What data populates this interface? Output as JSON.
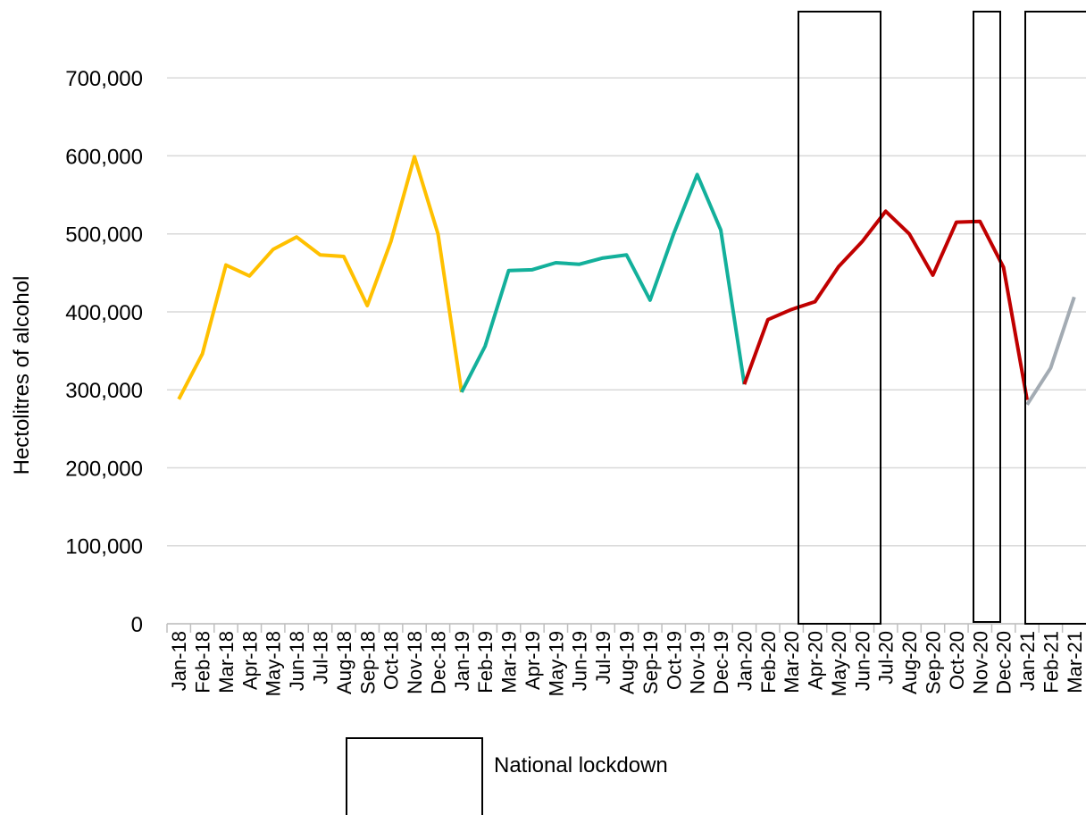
{
  "chart_data": {
    "type": "line",
    "y_label": "Hectolitres of alcohol",
    "legend_label": "National lockdown",
    "categories": [
      "Jan-18",
      "Feb-18",
      "Mar-18",
      "Apr-18",
      "May-18",
      "Jun-18",
      "Jul-18",
      "Aug-18",
      "Sep-18",
      "Oct-18",
      "Nov-18",
      "Dec-18",
      "Jan-19",
      "Feb-19",
      "Mar-19",
      "Apr-19",
      "May-19",
      "Jun-19",
      "Jul-19",
      "Aug-19",
      "Sep-19",
      "Oct-19",
      "Nov-19",
      "Dec-19",
      "Jan-20",
      "Feb-20",
      "Mar-20",
      "Apr-20",
      "May-20",
      "Jun-20",
      "Jul-20",
      "Aug-20",
      "Sep-20",
      "Oct-20",
      "Nov-20",
      "Dec-20",
      "Jan-21",
      "Feb-21",
      "Mar-21"
    ],
    "series": [
      {
        "color": "#ffc000",
        "values": [
          288000,
          346000,
          460000,
          446000,
          480000,
          496000,
          473000,
          471000,
          408000,
          490000,
          599000,
          500000,
          297000,
          null,
          null,
          null,
          null,
          null,
          null,
          null,
          null,
          null,
          null,
          null,
          null,
          null,
          null,
          null,
          null,
          null,
          null,
          null,
          null,
          null,
          null,
          null,
          null,
          null,
          null
        ]
      },
      {
        "color": "#13b09b",
        "values": [
          null,
          null,
          null,
          null,
          null,
          null,
          null,
          null,
          null,
          null,
          null,
          null,
          297000,
          356000,
          453000,
          454000,
          463000,
          461000,
          469000,
          473000,
          415000,
          500000,
          576000,
          505000,
          307000,
          null,
          null,
          null,
          null,
          null,
          null,
          null,
          null,
          null,
          null,
          null,
          null,
          null,
          null
        ]
      },
      {
        "color": "#c00000",
        "values": [
          null,
          null,
          null,
          null,
          null,
          null,
          null,
          null,
          null,
          null,
          null,
          null,
          null,
          null,
          null,
          null,
          null,
          null,
          null,
          null,
          null,
          null,
          null,
          null,
          307000,
          390000,
          403000,
          413000,
          458000,
          490000,
          529000,
          500000,
          447000,
          515000,
          516000,
          457000,
          287000,
          null,
          null
        ]
      },
      {
        "color": "#a3abb3",
        "values": [
          null,
          null,
          null,
          null,
          null,
          null,
          null,
          null,
          null,
          null,
          null,
          null,
          null,
          null,
          null,
          null,
          null,
          null,
          null,
          null,
          null,
          null,
          null,
          null,
          null,
          null,
          null,
          null,
          null,
          null,
          null,
          null,
          null,
          null,
          null,
          null,
          281000,
          328000,
          419000
        ]
      }
    ],
    "ylim": [
      0,
      785000
    ],
    "yticks": [
      0,
      {
        "value": 100000,
        "label": "100,000"
      },
      {
        "value": 200000,
        "label": "200,000"
      },
      {
        "value": 300000,
        "label": "300,000"
      },
      {
        "value": 400000,
        "label": "400,000"
      },
      {
        "value": 500000,
        "label": "500,000"
      },
      {
        "value": 600000,
        "label": "600,000"
      },
      {
        "value": 700000,
        "label": "700,000"
      }
    ],
    "grid": true
  }
}
